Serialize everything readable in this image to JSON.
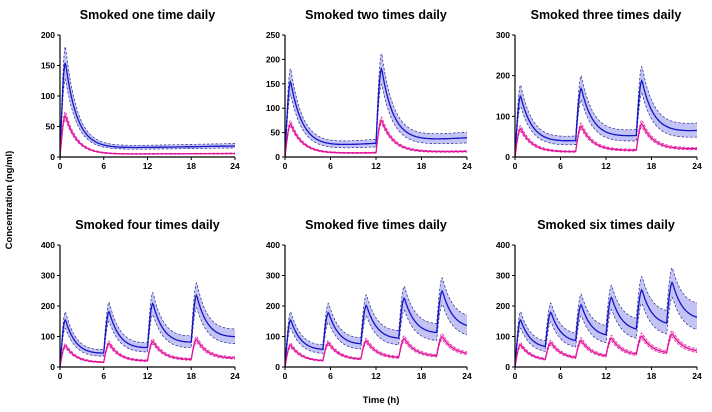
{
  "figure": {
    "xlabel": "Time (h)",
    "ylabel": "Concentration (ng/ml)"
  },
  "colors": {
    "blue_line": "#1515c8",
    "blue_band": "#b9b9f3",
    "magenta_line": "#e0149c",
    "magenta_band": "#f3a6d8",
    "dash": "#2a2a88"
  },
  "chart_data": [
    {
      "type": "line",
      "title": "Smoked one time daily",
      "doses_per_day": 1,
      "dose_times": [
        0
      ],
      "xlim": [
        0,
        24
      ],
      "ylim": [
        0,
        200
      ],
      "xticks": [
        0,
        6,
        12,
        18,
        24
      ],
      "yticks": [
        0,
        50,
        100,
        150,
        200
      ],
      "series": [
        {
          "color": "#1515c8",
          "peak_median": 155,
          "peak_upper": 182,
          "peak_lower": 128,
          "trough_median": 22,
          "end_median": 22,
          "end_upper": 27,
          "end_lower": 18
        },
        {
          "color": "#e0149c",
          "peak_median": 68,
          "peak_upper": 75,
          "peak_lower": 62,
          "trough_median": 7,
          "end_median": 7,
          "end_upper": 8,
          "end_lower": 6
        }
      ]
    },
    {
      "type": "line",
      "title": "Smoked two times daily",
      "doses_per_day": 2,
      "dose_times": [
        0,
        12
      ],
      "xlim": [
        0,
        24
      ],
      "ylim": [
        0,
        250
      ],
      "xticks": [
        0,
        6,
        12,
        18,
        24
      ],
      "yticks": [
        0,
        50,
        100,
        150,
        200,
        250
      ],
      "series": [
        {
          "color": "#1515c8",
          "peak_median": 155,
          "peak_upper": 182,
          "peak_lower": 128,
          "trough_median": 28,
          "end_median": 48,
          "end_upper": 62,
          "end_lower": 35
        },
        {
          "color": "#e0149c",
          "peak_median": 68,
          "peak_upper": 75,
          "peak_lower": 62,
          "trough_median": 10,
          "end_median": 14,
          "end_upper": 16,
          "end_lower": 12
        }
      ]
    },
    {
      "type": "line",
      "title": "Smoked three times daily",
      "doses_per_day": 3,
      "dose_times": [
        0,
        8,
        16
      ],
      "xlim": [
        0,
        24
      ],
      "ylim": [
        0,
        300
      ],
      "xticks": [
        0,
        6,
        12,
        18,
        24
      ],
      "yticks": [
        0,
        100,
        200,
        300
      ],
      "series": [
        {
          "color": "#1515c8",
          "peak_median": 150,
          "peak_upper": 178,
          "peak_lower": 125,
          "trough_median": 45,
          "end_median": 78,
          "end_upper": 100,
          "end_lower": 58
        },
        {
          "color": "#e0149c",
          "peak_median": 70,
          "peak_upper": 78,
          "peak_lower": 63,
          "trough_median": 15,
          "end_median": 24,
          "end_upper": 28,
          "end_lower": 21
        }
      ]
    },
    {
      "type": "line",
      "title": "Smoked four times daily",
      "doses_per_day": 4,
      "dose_times": [
        0,
        6,
        12,
        18
      ],
      "xlim": [
        0,
        24
      ],
      "ylim": [
        0,
        400
      ],
      "xticks": [
        0,
        6,
        12,
        18,
        24
      ],
      "yticks": [
        0,
        100,
        200,
        300,
        400
      ],
      "series": [
        {
          "color": "#1515c8",
          "peak_median": 155,
          "peak_upper": 182,
          "peak_lower": 128,
          "trough_median": 40,
          "end_median": 115,
          "end_upper": 145,
          "end_lower": 88
        },
        {
          "color": "#e0149c",
          "peak_median": 70,
          "peak_upper": 78,
          "peak_lower": 63,
          "trough_median": 15,
          "end_median": 33,
          "end_upper": 38,
          "end_lower": 29
        }
      ]
    },
    {
      "type": "line",
      "title": "Smoked five times daily",
      "doses_per_day": 5,
      "dose_times": [
        0,
        5,
        10,
        15,
        20
      ],
      "xlim": [
        0,
        24
      ],
      "ylim": [
        0,
        400
      ],
      "xticks": [
        0,
        6,
        12,
        18,
        24
      ],
      "yticks": [
        0,
        100,
        200,
        300,
        400
      ],
      "series": [
        {
          "color": "#1515c8",
          "peak_median": 155,
          "peak_upper": 182,
          "peak_lower": 128,
          "trough_median": 55,
          "end_median": 145,
          "end_upper": 185,
          "end_lower": 110
        },
        {
          "color": "#e0149c",
          "peak_median": 72,
          "peak_upper": 80,
          "peak_lower": 65,
          "trough_median": 20,
          "end_median": 45,
          "end_upper": 50,
          "end_lower": 40
        }
      ]
    },
    {
      "type": "line",
      "title": "Smoked six times daily",
      "doses_per_day": 6,
      "dose_times": [
        0,
        4,
        8,
        12,
        16,
        20
      ],
      "xlim": [
        0,
        24
      ],
      "ylim": [
        0,
        400
      ],
      "xticks": [
        0,
        6,
        12,
        18,
        24
      ],
      "yticks": [
        0,
        100,
        200,
        300,
        400
      ],
      "series": [
        {
          "color": "#1515c8",
          "peak_median": 155,
          "peak_upper": 182,
          "peak_lower": 128,
          "trough_median": 60,
          "end_median": 178,
          "end_upper": 235,
          "end_lower": 130
        },
        {
          "color": "#e0149c",
          "peak_median": 73,
          "peak_upper": 81,
          "peak_lower": 66,
          "trough_median": 22,
          "end_median": 55,
          "end_upper": 62,
          "end_lower": 48
        }
      ]
    }
  ]
}
